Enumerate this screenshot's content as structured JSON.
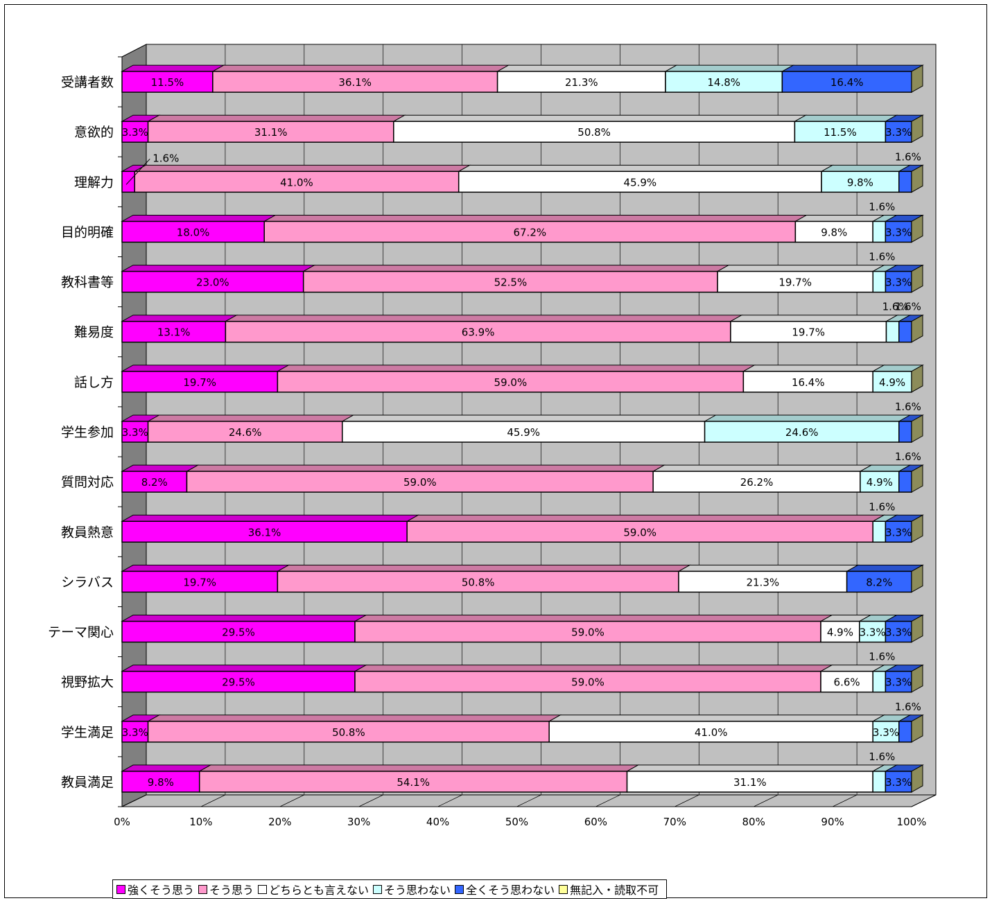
{
  "chart_data": {
    "type": "bar",
    "orientation": "horizontal",
    "stacked": "percent",
    "three_d": true,
    "categories": [
      "受講者数",
      "意欲的",
      "理解力",
      "目的明確",
      "教科書等",
      "難易度",
      "話し方",
      "学生参加",
      "質問対応",
      "教員熱意",
      "シラバス",
      "テーマ関心",
      "視野拡大",
      "学生満足",
      "教員満足"
    ],
    "series": [
      {
        "name": "強くそう思う",
        "color": "#ff00ff",
        "values": [
          11.5,
          3.3,
          1.6,
          18.0,
          23.0,
          13.1,
          19.7,
          3.3,
          8.2,
          36.1,
          19.7,
          29.5,
          29.5,
          3.3,
          9.8
        ]
      },
      {
        "name": "そう思う",
        "color": "#ff99cc",
        "values": [
          36.1,
          31.1,
          41.0,
          67.2,
          52.5,
          63.9,
          59.0,
          24.6,
          59.0,
          59.0,
          50.8,
          59.0,
          59.0,
          50.8,
          54.1
        ]
      },
      {
        "name": "どちらとも言えない",
        "color": "#ffffff",
        "values": [
          21.3,
          50.8,
          45.9,
          9.8,
          19.7,
          19.7,
          16.4,
          45.9,
          26.2,
          0,
          21.3,
          4.9,
          6.6,
          41.0,
          31.1
        ]
      },
      {
        "name": "そう思わない",
        "color": "#ccffff",
        "values": [
          14.8,
          11.5,
          9.8,
          1.6,
          1.6,
          1.6,
          4.9,
          24.6,
          4.9,
          1.6,
          0,
          3.3,
          1.6,
          3.3,
          1.6
        ]
      },
      {
        "name": "全くそう思わない",
        "color": "#3366ff",
        "values": [
          16.4,
          3.3,
          1.6,
          3.3,
          3.3,
          1.6,
          0,
          1.6,
          1.6,
          3.3,
          8.2,
          3.3,
          3.3,
          1.6,
          3.3
        ]
      },
      {
        "name": "無記入・読取不可",
        "color": "#ffff99",
        "values": [
          0,
          0,
          0,
          0,
          0,
          0,
          0,
          0,
          0,
          0,
          0,
          0,
          0,
          0,
          0
        ]
      }
    ],
    "data_labels": [
      [
        "11.5%",
        "36.1%",
        "21.3%",
        "14.8%",
        "16.4%"
      ],
      [
        "3.3%",
        "31.1%",
        "50.8%",
        "11.5%",
        "3.3%"
      ],
      [
        "1.6%",
        "41.0%",
        "45.9%",
        "9.8%",
        "1.6%"
      ],
      [
        "18.0%",
        "67.2%",
        "9.8%",
        "1.6%",
        "3.3%"
      ],
      [
        "23.0%",
        "52.5%",
        "19.7%",
        "1.6%",
        "3.3%"
      ],
      [
        "13.1%",
        "63.9%",
        "19.7%",
        "1.6%",
        "1.6%"
      ],
      [
        "19.7%",
        "59.0%",
        "16.4%",
        "4.9%"
      ],
      [
        "3.3%",
        "24.6%",
        "45.9%",
        "24.6%",
        "1.6%"
      ],
      [
        "8.2%",
        "59.0%",
        "26.2%",
        "4.9%",
        "1.6%"
      ],
      [
        "36.1%",
        "59.0%",
        "1.6%",
        "3.3%"
      ],
      [
        "19.7%",
        "50.8%",
        "21.3%",
        "8.2%"
      ],
      [
        "29.5%",
        "59.0%",
        "4.9%",
        "3.3%",
        "3.3%"
      ],
      [
        "29.5%",
        "59.0%",
        "6.6%",
        "1.6%",
        "3.3%"
      ],
      [
        "3.3%",
        "50.8%",
        "41.0%",
        "3.3%",
        "1.6%"
      ],
      [
        "9.8%",
        "54.1%",
        "31.1%",
        "1.6%",
        "3.3%"
      ]
    ],
    "x_ticks": [
      "0%",
      "10%",
      "20%",
      "30%",
      "40%",
      "50%",
      "60%",
      "70%",
      "80%",
      "90%",
      "100%"
    ],
    "xlim": [
      0,
      100
    ],
    "grid": true,
    "legend_position": "bottom"
  }
}
